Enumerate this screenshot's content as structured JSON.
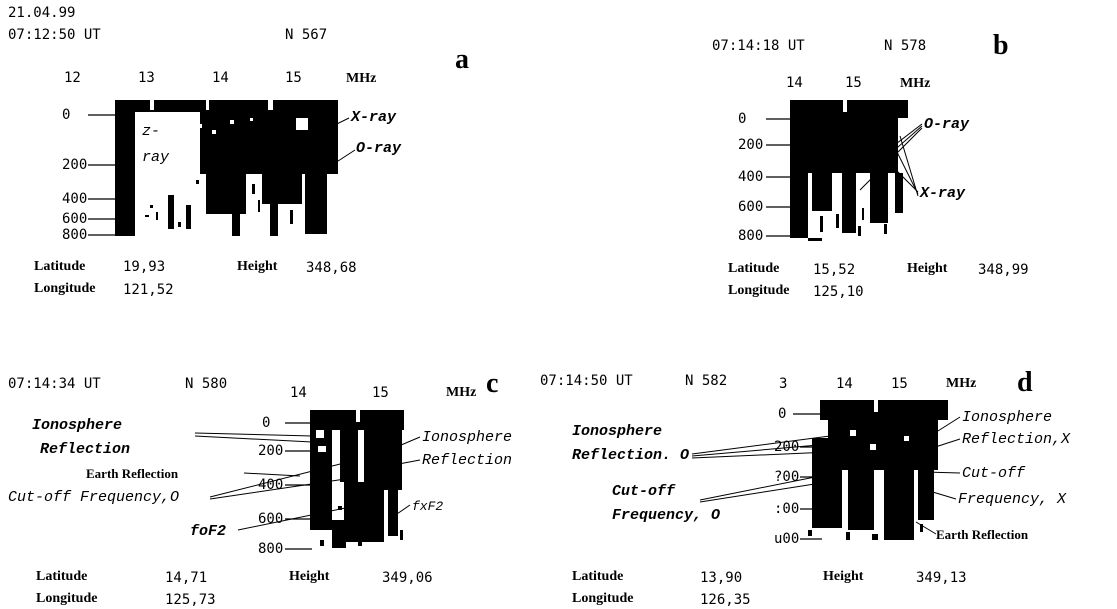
{
  "header": {
    "date": "21.04.99"
  },
  "panels": {
    "a": {
      "letter": "a",
      "time": "07:12:50 UT",
      "frame": "N  567",
      "freq_ticks": [
        "12",
        "13",
        "14",
        "15"
      ],
      "freq_unit": "MHz",
      "height_ticks": [
        "0",
        "200",
        "400",
        "600",
        "800"
      ],
      "labels": {
        "z_ray_1": "z-",
        "z_ray_2": "ray",
        "x_ray": "X-ray",
        "o_ray": "O-ray"
      },
      "lat_label": "Latitude",
      "lat_value": "19,93",
      "height_label": "Height",
      "height_value": "348,68",
      "lon_label": "Longitude",
      "lon_value": "121,52"
    },
    "b": {
      "letter": "b",
      "time": "07:14:18 UT",
      "frame": "N 578",
      "freq_ticks": [
        "14",
        "15"
      ],
      "freq_unit": "MHz",
      "height_ticks": [
        "0",
        "200",
        "400",
        "600",
        "800"
      ],
      "labels": {
        "o_ray": "O-ray",
        "x_ray": "X-ray"
      },
      "lat_label": "Latitude",
      "lat_value": "15,52",
      "height_label": "Height",
      "height_value": "348,99",
      "lon_label": "Longitude",
      "lon_value": "125,10"
    },
    "c": {
      "letter": "c",
      "time": "07:14:34 UT",
      "frame": "N 580",
      "freq_ticks": [
        "14",
        "15"
      ],
      "freq_unit": "MHz",
      "height_ticks": [
        "0",
        "200",
        "400",
        "600",
        "800"
      ],
      "labels": {
        "iono_left_1": "Ionosphere",
        "iono_left_2": "Reflection",
        "earth": "Earth Reflection",
        "cutoff": "Cut-off Frequency,O",
        "fof2": "foF2",
        "iono_right_1": "Ionosphere",
        "iono_right_2": "Reflection",
        "fxf2": "fxF2"
      },
      "lat_label": "Latitude",
      "lat_value": "14,71",
      "height_label": "Height",
      "height_value": "349,06",
      "lon_label": "Longitude",
      "lon_value": "125,73"
    },
    "d": {
      "letter": "d",
      "time": "07:14:50 UT",
      "frame": "N 582",
      "freq_ticks": [
        "3",
        "14",
        "15"
      ],
      "freq_unit": "MHz",
      "height_ticks": [
        "0",
        "200",
        "?00",
        ":00",
        "u00"
      ],
      "labels": {
        "iono_left_1": "Ionosphere",
        "iono_left_2": "Reflection. O",
        "cutoff_left_1": "Cut-off",
        "cutoff_left_2": "Frequency, O",
        "iono_right_1": "Ionosphere",
        "iono_right_2": "Reflection,X",
        "cutoff_right_1": "Cut-off",
        "cutoff_right_2": "Frequency, X",
        "earth": "Earth Reflection"
      },
      "lat_label": "Latitude",
      "lat_value": "13,90",
      "height_label": "Height",
      "height_value": "349,13",
      "lon_label": "Longitude",
      "lon_value": "126,35"
    }
  }
}
